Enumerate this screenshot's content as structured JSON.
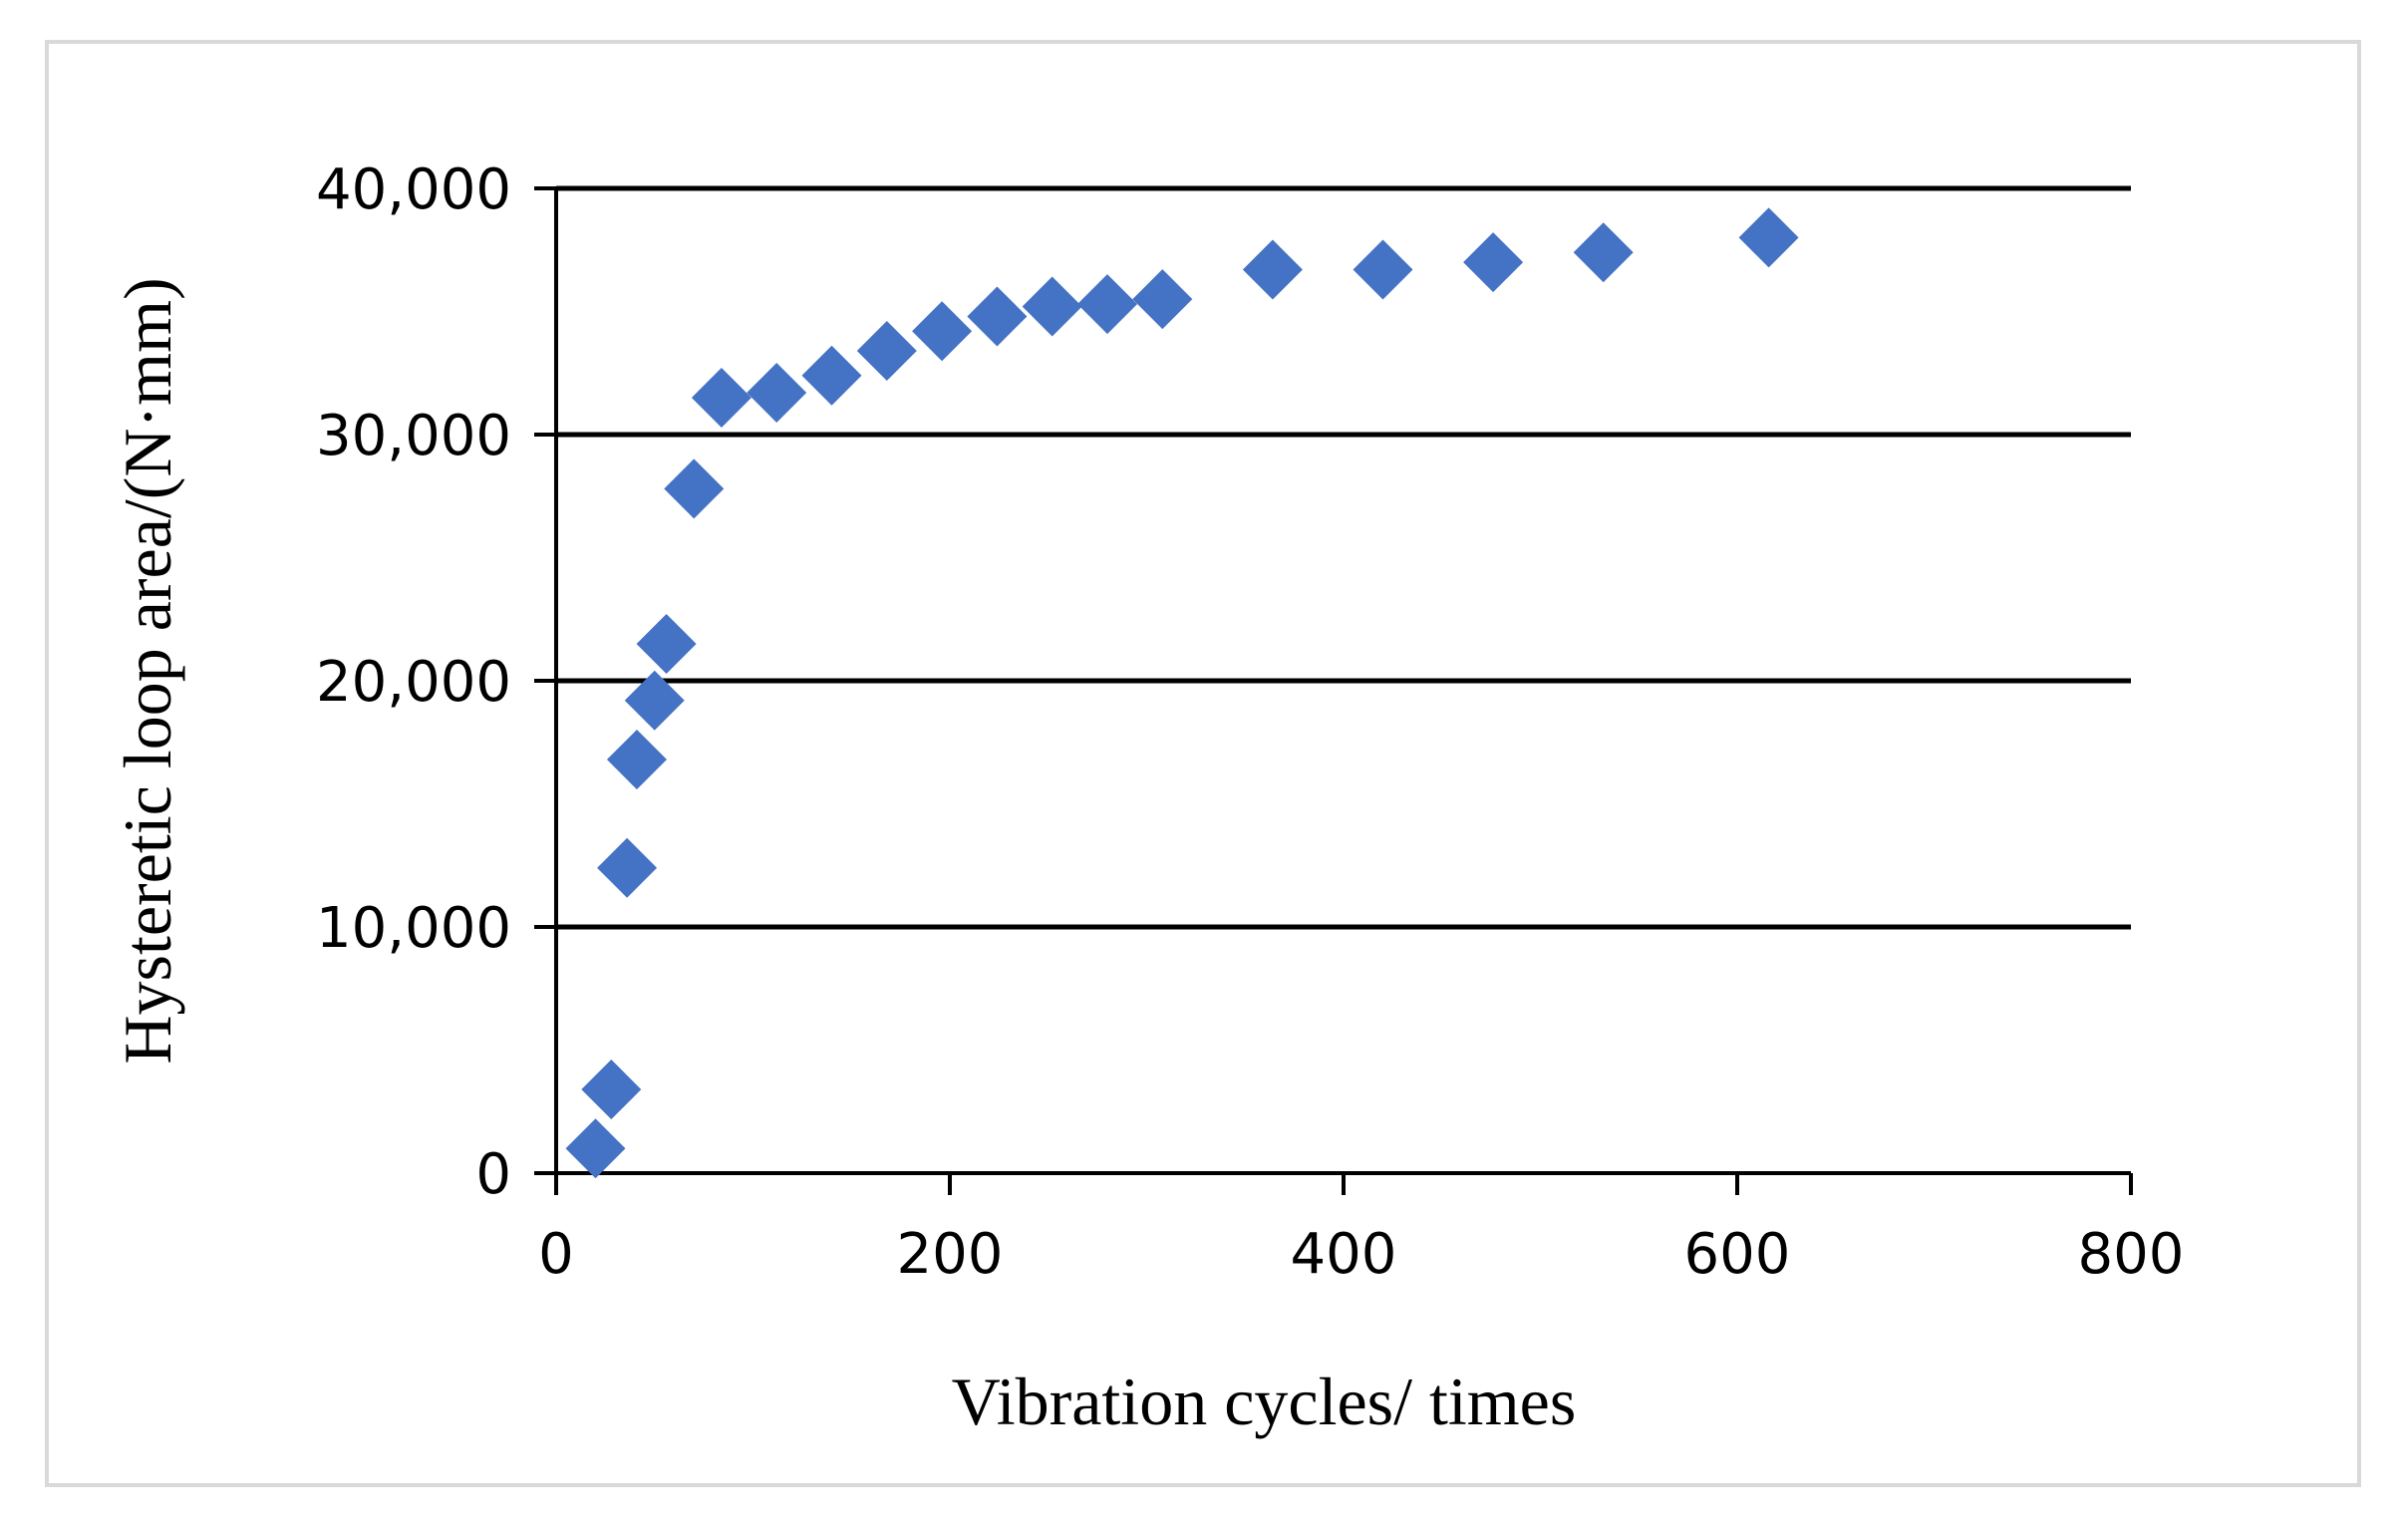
{
  "chart_data": {
    "type": "scatter",
    "title": "",
    "xlabel": "Vibration cycles/ times",
    "ylabel": "Hysteretic loop area/(N·mm)",
    "xlim": [
      0,
      800
    ],
    "ylim": [
      0,
      40000
    ],
    "x_ticks": [
      0,
      200,
      400,
      600,
      800
    ],
    "y_ticks": [
      0,
      10000,
      20000,
      30000,
      40000
    ],
    "x_tick_labels": [
      "0",
      "200",
      "400",
      "600",
      "800"
    ],
    "y_tick_labels": [
      "0",
      "10,000",
      "20,000",
      "30,000",
      "40,000"
    ],
    "grid": "horizontal",
    "legend": "none",
    "marker": "diamond",
    "colors": {
      "marker": "#4472C4",
      "grid": "#000000",
      "frame": "#d9d9d9"
    },
    "series": [
      {
        "name": "Hysteretic loop area",
        "x": [
          20,
          28,
          36,
          41,
          50,
          56,
          70,
          84,
          112,
          140,
          168,
          196,
          224,
          252,
          280,
          308,
          364,
          420,
          476,
          532,
          616
        ],
        "y": [
          1000,
          3400,
          12400,
          16800,
          19200,
          21500,
          27800,
          31500,
          31700,
          32400,
          33400,
          34200,
          34800,
          35200,
          35300,
          35500,
          36700,
          36700,
          37000,
          37400,
          38000
        ]
      }
    ]
  }
}
